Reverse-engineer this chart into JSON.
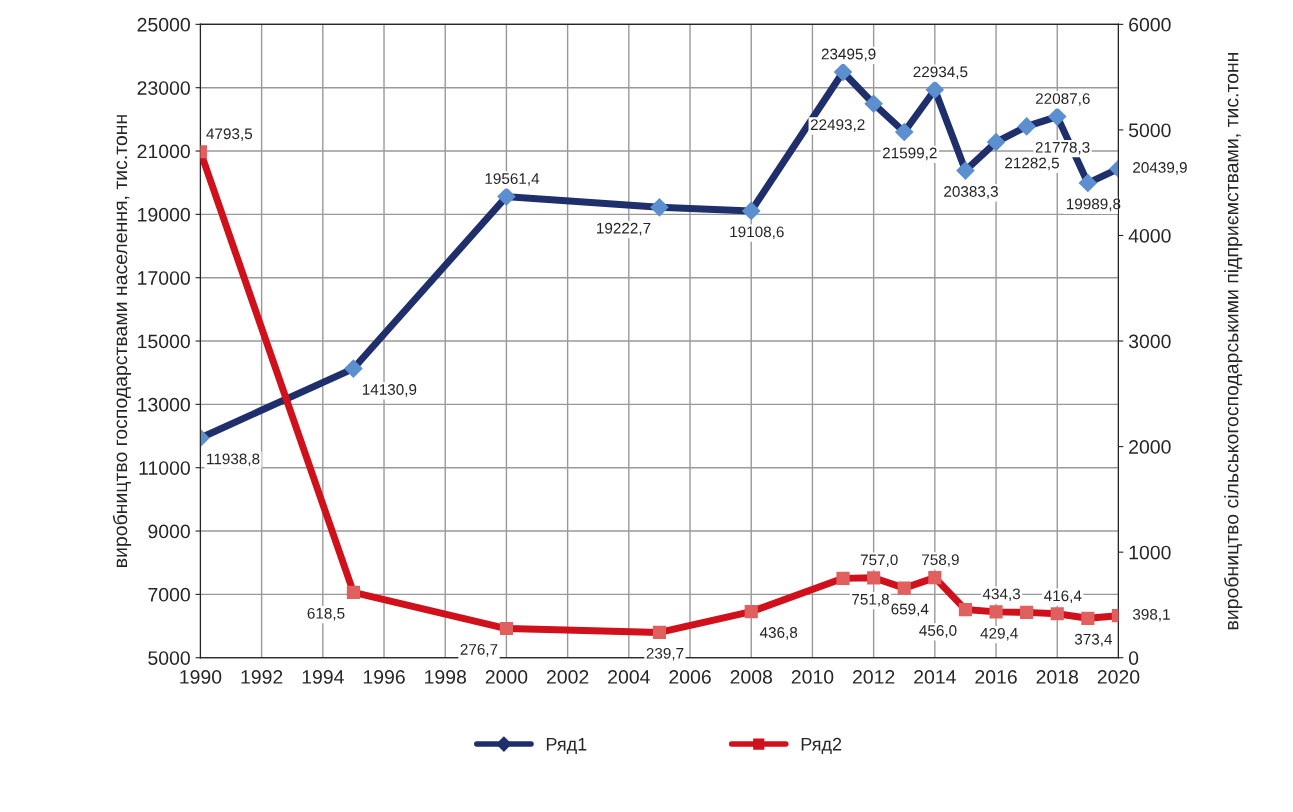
{
  "chart_data": {
    "type": "line",
    "x": [
      1990,
      1995,
      2000,
      2005,
      2008,
      2011,
      2012,
      2013,
      2014,
      2015,
      2016,
      2017,
      2018,
      2019,
      2020
    ],
    "series": [
      {
        "name": "Ряд1",
        "color": "#1f2f6b",
        "marker": "diamond",
        "values": [
          11938.8,
          14130.9,
          19561.4,
          19222.7,
          19108.6,
          23495.9,
          22493.2,
          21599.2,
          22934.5,
          20383.3,
          21282.5,
          21778.3,
          22087.6,
          19989.8,
          20439.9
        ],
        "value_labels": [
          "11938,8",
          "14130,9",
          "19561,4",
          "19222,7",
          "19108,6",
          "23495,9",
          "22493,2",
          "21599,2",
          "22934,5",
          "20383,3",
          "21282,5",
          "21778,3",
          "22087,6",
          "19989,8",
          "20439,9"
        ]
      },
      {
        "name": "Ряд2",
        "color": "#d0101a",
        "marker": "square",
        "axis": "y2",
        "values": [
          4793.5,
          618.5,
          276.7,
          239.7,
          436.8,
          751.8,
          757.0,
          659.4,
          758.9,
          456.0,
          434.3,
          429.4,
          416.4,
          373.4,
          398.1
        ],
        "value_labels": [
          "4793,5",
          "618,5",
          "276,7",
          "239,7",
          "436,8",
          "751,8",
          "757,0",
          "659,4",
          "758,9",
          "456,0",
          "434,3",
          "429,4",
          "416,4",
          "373,4",
          "398,1"
        ]
      }
    ],
    "ylabel": "виробництво господарствами населення, тис.тонн",
    "y2label": "виробництво сільськогосподарськими підприємствами, тис.тонн",
    "xlim": [
      1990,
      2020
    ],
    "xticks": [
      1990,
      1992,
      1994,
      1996,
      1998,
      2000,
      2002,
      2004,
      2006,
      2008,
      2010,
      2012,
      2014,
      2016,
      2018,
      2020
    ],
    "ylim": [
      5000,
      25000
    ],
    "yticks": [
      5000,
      7000,
      9000,
      11000,
      13000,
      15000,
      17000,
      19000,
      21000,
      23000,
      25000
    ],
    "y2lim": [
      0,
      6000
    ],
    "y2ticks": [
      0,
      1000,
      2000,
      3000,
      4000,
      5000,
      6000
    ],
    "grid": true,
    "legend": "bottom"
  }
}
